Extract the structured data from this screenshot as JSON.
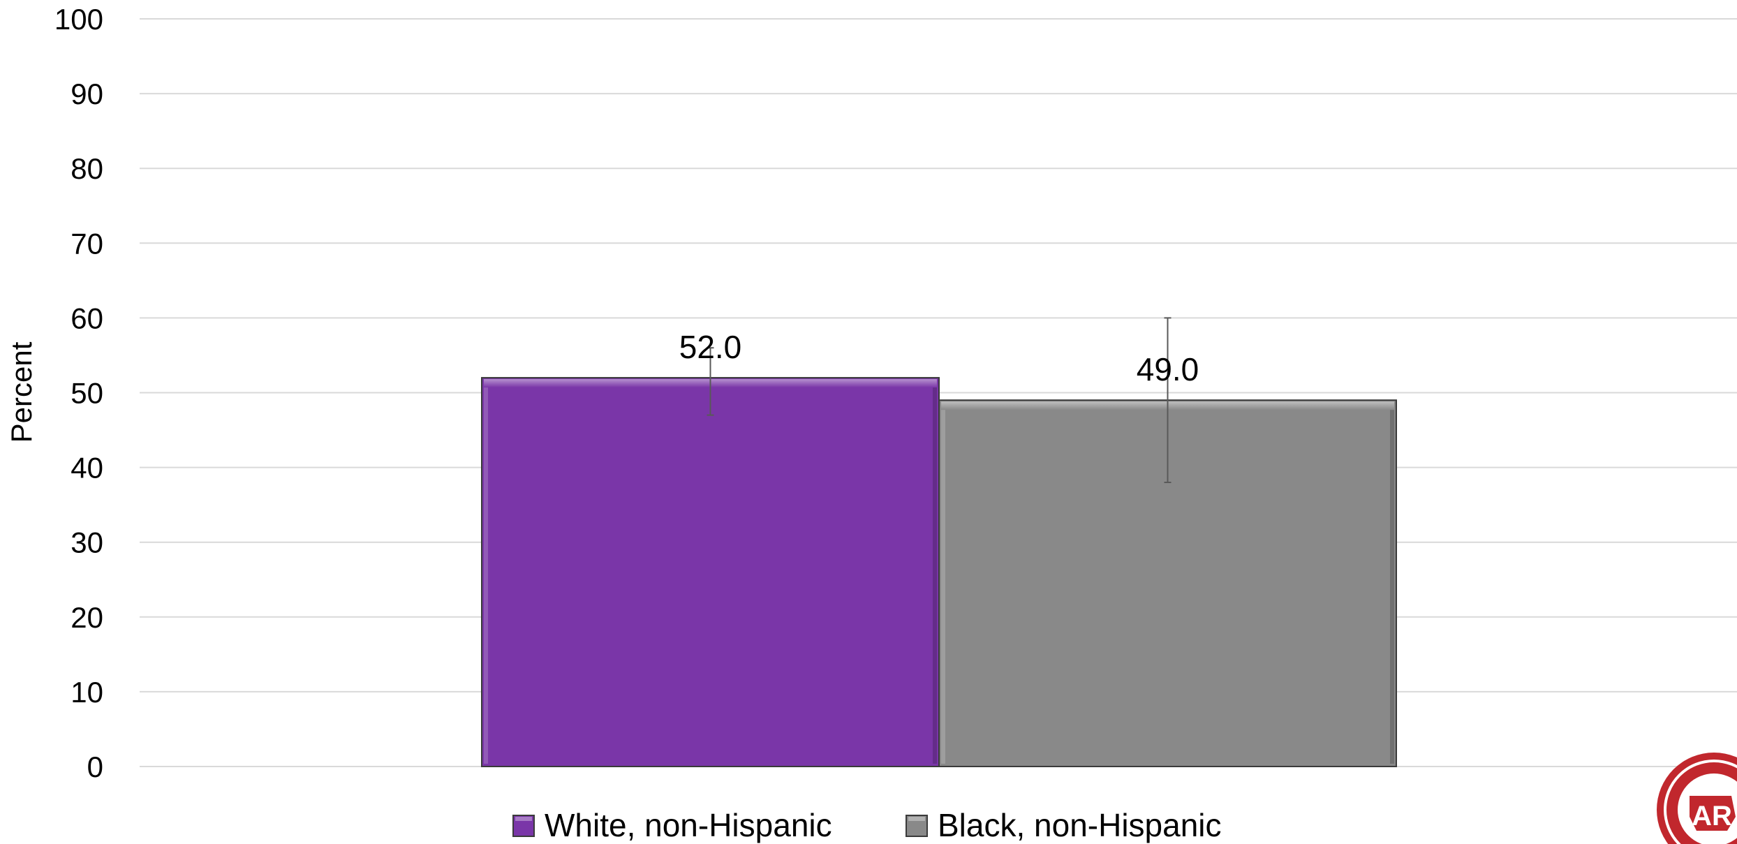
{
  "chart_data": {
    "type": "bar",
    "ylabel": "Percent",
    "ylim": [
      0,
      100
    ],
    "yticks": [
      0,
      10,
      20,
      30,
      40,
      50,
      60,
      70,
      80,
      90,
      100
    ],
    "grid": true,
    "legend_position": "bottom",
    "series": [
      {
        "name": "White, non-Hispanic",
        "value": 52.0,
        "label": "52.0",
        "error_low": 47.0,
        "error_high": 56.0,
        "color": "#7a36a8"
      },
      {
        "name": "Black, non-Hispanic",
        "value": 49.0,
        "label": "49.0",
        "error_low": 38.0,
        "error_high": 60.0,
        "color": "#898989"
      }
    ]
  }
}
